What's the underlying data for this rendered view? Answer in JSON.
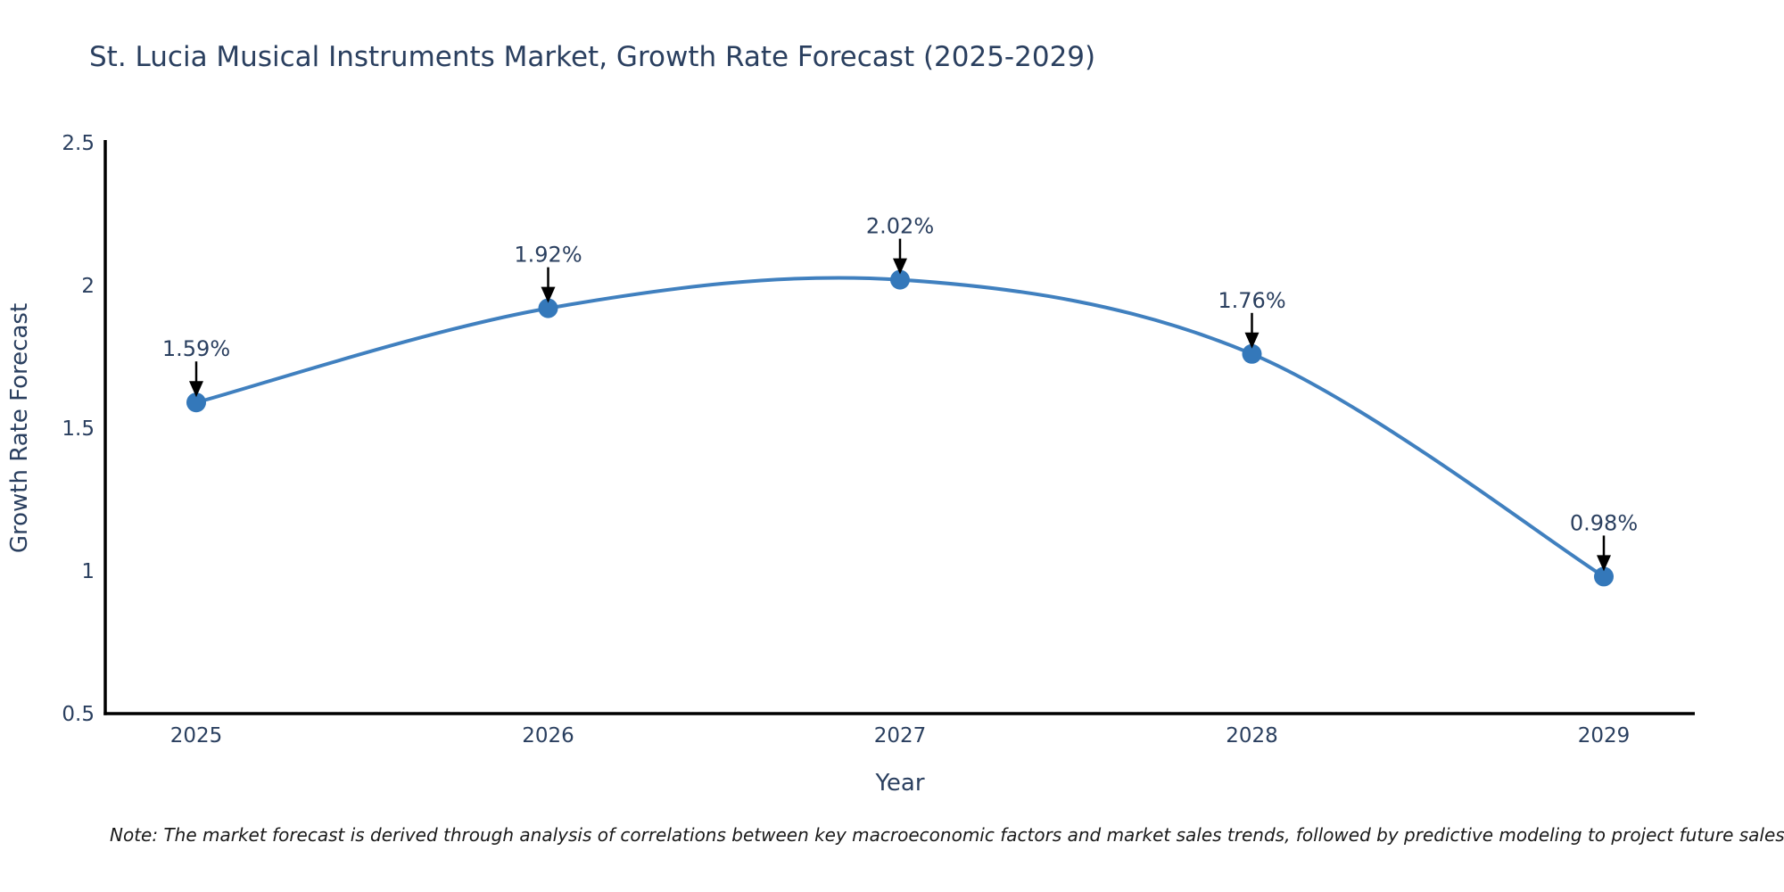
{
  "page": {
    "title": "St. Lucia Musical Instruments Market, Growth Rate Forecast (2025-2029)",
    "note": "Note: The market forecast is derived through analysis of correlations between key macroeconomic factors and market sales trends, followed by predictive modeling to project future sales"
  },
  "chart_data": {
    "type": "line",
    "title": "St. Lucia Musical Instruments Market, Growth Rate Forecast (2025-2029)",
    "categories": [
      "2025",
      "2026",
      "2027",
      "2028",
      "2029"
    ],
    "series": [
      {
        "name": "Growth Rate Forecast",
        "values": [
          1.59,
          1.92,
          2.02,
          1.76,
          0.98
        ]
      }
    ],
    "point_labels": [
      "1.59%",
      "1.92%",
      "2.02%",
      "1.76%",
      "0.98%"
    ],
    "xlabel": "Year",
    "ylabel": "Growth Rate Forecast",
    "ylim": [
      0.5,
      2.5
    ],
    "yticks": [
      "0.5",
      "1",
      "1.5",
      "2",
      "2.5"
    ],
    "grid": false,
    "legend": "none",
    "line_shape": "spline",
    "markers": true,
    "annotations_with_arrows": true,
    "colors": {
      "line": "#4080bf",
      "marker": "#3478ba",
      "axis": "#000000",
      "text": "#2a3f5f",
      "arrow": "#000000",
      "note_text": "#1a1a1a",
      "background": "#ffffff"
    }
  }
}
